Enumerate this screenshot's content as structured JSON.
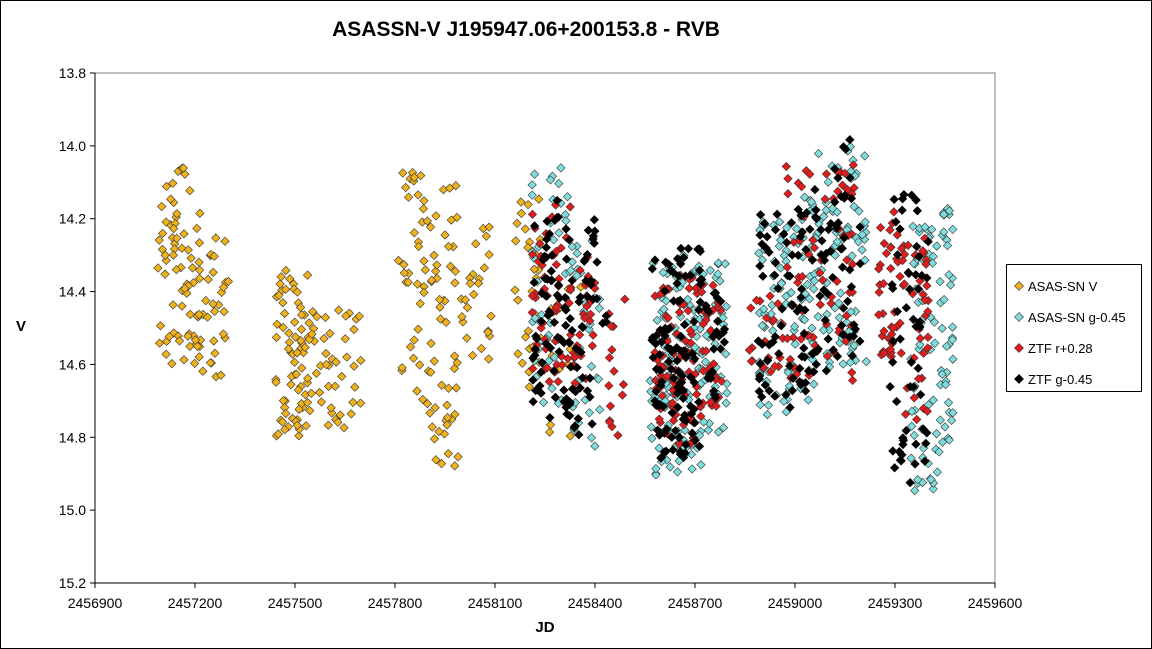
{
  "title": "ASASSN-V J195947.06+200153.8  - RVB",
  "chart_data": {
    "type": "scatter",
    "title": "ASASSN-V J195947.06+200153.8  - RVB",
    "xlabel": "JD",
    "ylabel": "V",
    "xlim": [
      2456900,
      2459600
    ],
    "ylim": [
      13.8,
      15.2
    ],
    "y_inverted": true,
    "x_ticks": [
      "2456900",
      "2457200",
      "2457500",
      "2457800",
      "2458100",
      "2458400",
      "2458700",
      "2459000",
      "2459300",
      "2459600"
    ],
    "y_ticks": [
      "13.8",
      "14.0",
      "14.2",
      "14.4",
      "14.6",
      "14.8",
      "15.0",
      "15.2"
    ],
    "grid": false,
    "legend_position": "right",
    "series": [
      {
        "name": "ASAS-SN V",
        "color": "#f0b21b",
        "segments": [
          {
            "x": [
              2457080,
              2457160
            ],
            "y": [
              14.1,
              14.6
            ],
            "n": 35
          },
          {
            "x": [
              2457160,
              2457240
            ],
            "y": [
              14.12,
              14.62
            ],
            "n": 40
          },
          {
            "x": [
              2457240,
              2457305
            ],
            "y": [
              14.25,
              14.64
            ],
            "n": 22
          },
          {
            "x": [
              2457145,
              2457180
            ],
            "y": [
              14.04,
              14.1
            ],
            "n": 4
          },
          {
            "x": [
              2457440,
              2457540
            ],
            "y": [
              14.34,
              14.8
            ],
            "n": 70
          },
          {
            "x": [
              2457540,
              2457710
            ],
            "y": [
              14.44,
              14.78
            ],
            "n": 45
          },
          {
            "x": [
              2457810,
              2457890
            ],
            "y": [
              14.07,
              14.72
            ],
            "n": 35
          },
          {
            "x": [
              2457890,
              2457990
            ],
            "y": [
              14.1,
              14.88
            ],
            "n": 55
          },
          {
            "x": [
              2457990,
              2458090
            ],
            "y": [
              14.2,
              14.62
            ],
            "n": 25
          },
          {
            "x": [
              2458160,
              2458240
            ],
            "y": [
              14.14,
              14.68
            ],
            "n": 30
          },
          {
            "x": [
              2458260,
              2458370
            ],
            "y": [
              14.3,
              14.83
            ],
            "n": 12
          }
        ]
      },
      {
        "name": "ASAS-SN g-0.45",
        "color": "#7fdcdc",
        "segments": [
          {
            "x": [
              2458210,
              2458330
            ],
            "y": [
              14.06,
              14.78
            ],
            "n": 45
          },
          {
            "x": [
              2458330,
              2458420
            ],
            "y": [
              14.25,
              14.85
            ],
            "n": 30
          },
          {
            "x": [
              2458565,
              2458650
            ],
            "y": [
              14.3,
              14.92
            ],
            "n": 60
          },
          {
            "x": [
              2458650,
              2458720
            ],
            "y": [
              14.3,
              14.91
            ],
            "n": 60
          },
          {
            "x": [
              2458720,
              2458800
            ],
            "y": [
              14.32,
              14.8
            ],
            "n": 40
          },
          {
            "x": [
              2458890,
              2458990
            ],
            "y": [
              14.2,
              14.74
            ],
            "n": 55
          },
          {
            "x": [
              2458990,
              2459070
            ],
            "y": [
              14.14,
              14.72
            ],
            "n": 45
          },
          {
            "x": [
              2459070,
              2459160
            ],
            "y": [
              14.01,
              14.66
            ],
            "n": 45
          },
          {
            "x": [
              2459160,
              2459215
            ],
            "y": [
              14.0,
              14.68
            ],
            "n": 30
          },
          {
            "x": [
              2459345,
              2459430
            ],
            "y": [
              14.22,
              14.95
            ],
            "n": 55
          },
          {
            "x": [
              2459430,
              2459475
            ],
            "y": [
              14.16,
              14.85
            ],
            "n": 40
          }
        ]
      },
      {
        "name": "ZTF r+0.28",
        "color": "#e41b1b",
        "segments": [
          {
            "x": [
              2458210,
              2458350
            ],
            "y": [
              14.14,
              14.68
            ],
            "n": 60
          },
          {
            "x": [
              2458350,
              2458400
            ],
            "y": [
              14.3,
              14.64
            ],
            "n": 20
          },
          {
            "x": [
              2458440,
              2458490
            ],
            "y": [
              14.38,
              14.82
            ],
            "n": 15
          },
          {
            "x": [
              2458580,
              2458720
            ],
            "y": [
              14.35,
              14.82
            ],
            "n": 80
          },
          {
            "x": [
              2458720,
              2458780
            ],
            "y": [
              14.38,
              14.72
            ],
            "n": 30
          },
          {
            "x": [
              2458860,
              2458960
            ],
            "y": [
              14.4,
              14.62
            ],
            "n": 20
          },
          {
            "x": [
              2458960,
              2459180
            ],
            "y": [
              14.05,
              14.65
            ],
            "n": 70
          },
          {
            "x": [
              2459245,
              2459330
            ],
            "y": [
              14.18,
              14.58
            ],
            "n": 45
          },
          {
            "x": [
              2459330,
              2459400
            ],
            "y": [
              14.22,
              14.82
            ],
            "n": 30
          }
        ]
      },
      {
        "name": "ZTF g-0.45",
        "color": "#000000",
        "segments": [
          {
            "x": [
              2458210,
              2458330
            ],
            "y": [
              14.14,
              14.76
            ],
            "n": 70
          },
          {
            "x": [
              2458330,
              2458400
            ],
            "y": [
              14.2,
              14.82
            ],
            "n": 35
          },
          {
            "x": [
              2458405,
              2458435
            ],
            "y": [
              14.25,
              14.52
            ],
            "n": 5
          },
          {
            "x": [
              2458570,
              2458720
            ],
            "y": [
              14.28,
              14.86
            ],
            "n": 110
          },
          {
            "x": [
              2458720,
              2458790
            ],
            "y": [
              14.4,
              14.7
            ],
            "n": 25
          },
          {
            "x": [
              2458890,
              2459000
            ],
            "y": [
              14.18,
              14.72
            ],
            "n": 45
          },
          {
            "x": [
              2459000,
              2459110
            ],
            "y": [
              14.1,
              14.68
            ],
            "n": 50
          },
          {
            "x": [
              2459110,
              2459200
            ],
            "y": [
              13.98,
              14.6
            ],
            "n": 35
          },
          {
            "x": [
              2459285,
              2459400
            ],
            "y": [
              14.11,
              14.93
            ],
            "n": 55
          }
        ]
      }
    ]
  }
}
